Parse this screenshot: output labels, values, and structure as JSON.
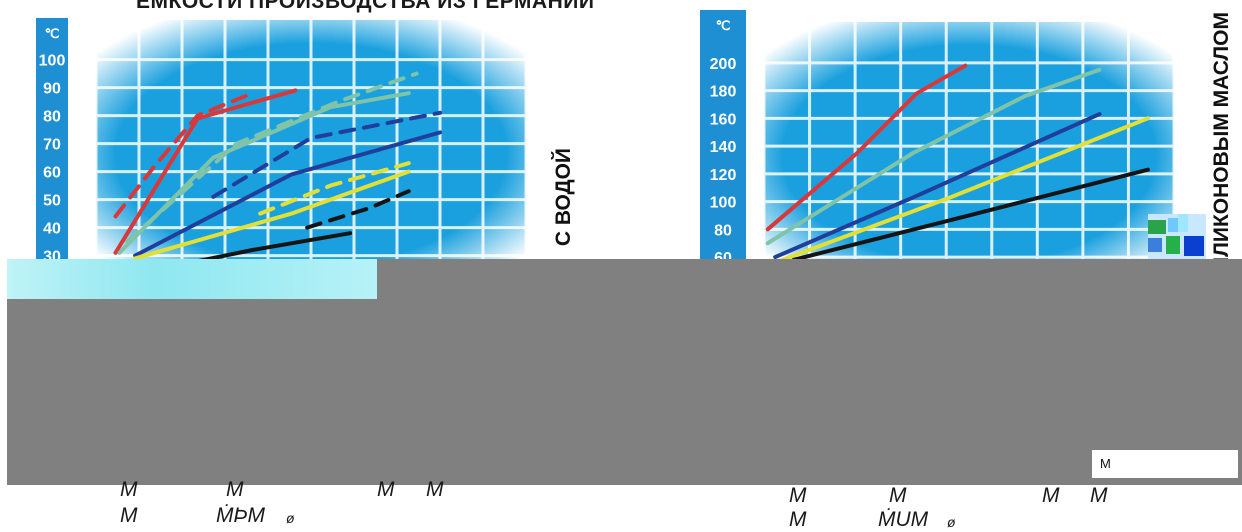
{
  "title": "ЕМКОСТИ ПРОИЗВОДСТВА ИЗ ГЕРМАНИИ",
  "box_text": "М",
  "charts_text": {
    "left_side_label": "С ВОДОЙ",
    "right_side_label": "С СИЛИКОНОВЫМ МАСЛОМ"
  },
  "footer": {
    "left": [
      {
        "text": "М",
        "size": "lg"
      },
      {
        "text": "М",
        "size": "lg"
      },
      {
        "text": "М",
        "size": "lg"
      },
      {
        "text": "М",
        "size": "lg"
      },
      {
        "text": "М",
        "size": "lg"
      },
      {
        "text": "ṀϷМ",
        "size": "lg"
      },
      {
        "text": "ø",
        "size": "sm"
      }
    ],
    "right": [
      {
        "text": "М",
        "size": "lg"
      },
      {
        "text": "М",
        "size": "lg"
      },
      {
        "text": "М",
        "size": "lg"
      },
      {
        "text": "М",
        "size": "lg"
      },
      {
        "text": "М",
        "size": "lg"
      },
      {
        "text": "ṀUМ",
        "size": "lg"
      },
      {
        "text": "ø",
        "size": "sm"
      }
    ]
  },
  "colors": {
    "axis_bar": "#1e8fd3",
    "grid_bg": "#1aa0de",
    "grid_line": "#d8f0fb",
    "red": "#d8383a",
    "teal": "#7fc4a8",
    "navy": "#1f3f9a",
    "yellow": "#e3e035",
    "black": "#141414"
  },
  "chart_data": [
    {
      "type": "line",
      "yunit": "℃",
      "ylim": [
        27,
        107
      ],
      "xlim": [
        0,
        11
      ],
      "yticks": [
        100,
        90,
        80,
        70,
        60,
        50,
        40,
        30
      ],
      "grid": true,
      "series": [
        {
          "color": "red",
          "dash": false,
          "points": [
            [
              0.5,
              31
            ],
            [
              2.6,
              79
            ],
            [
              5.1,
              89
            ]
          ]
        },
        {
          "color": "red",
          "dash": true,
          "points": [
            [
              0.5,
              44
            ],
            [
              1.5,
              62
            ],
            [
              2.6,
              80
            ],
            [
              4.0,
              88
            ]
          ]
        },
        {
          "color": "teal",
          "dash": false,
          "points": [
            [
              0.6,
              31
            ],
            [
              3.0,
              65
            ],
            [
              6.0,
              83
            ],
            [
              8.0,
              88
            ]
          ]
        },
        {
          "color": "teal",
          "dash": true,
          "points": [
            [
              0.8,
              35
            ],
            [
              3.6,
              70
            ],
            [
              6.2,
              85
            ],
            [
              8.2,
              95
            ]
          ]
        },
        {
          "color": "navy",
          "dash": false,
          "points": [
            [
              1.0,
              30
            ],
            [
              5.0,
              59
            ],
            [
              8.8,
              74
            ]
          ]
        },
        {
          "color": "navy",
          "dash": true,
          "points": [
            [
              3.0,
              51
            ],
            [
              5.5,
              72
            ],
            [
              8.8,
              81
            ]
          ]
        },
        {
          "color": "yellow",
          "dash": false,
          "points": [
            [
              1.0,
              29
            ],
            [
              5.0,
              45
            ],
            [
              8.0,
              60
            ]
          ]
        },
        {
          "color": "yellow",
          "dash": true,
          "points": [
            [
              4.2,
              45
            ],
            [
              6.0,
              55
            ],
            [
              8.0,
              63
            ]
          ]
        },
        {
          "color": "black",
          "dash": false,
          "points": [
            [
              2.6,
              28
            ],
            [
              4.0,
              32
            ],
            [
              6.5,
              38
            ]
          ]
        },
        {
          "color": "black",
          "dash": true,
          "points": [
            [
              5.4,
              40
            ],
            [
              7.0,
              47
            ],
            [
              8.0,
              53
            ]
          ]
        }
      ]
    },
    {
      "type": "line",
      "yunit": "℃",
      "ylim": [
        55,
        215
      ],
      "xlim": [
        0,
        11
      ],
      "yticks": [
        200,
        180,
        160,
        140,
        120,
        100,
        80,
        60
      ],
      "grid": true,
      "series": [
        {
          "color": "red",
          "dash": false,
          "points": [
            [
              0.1,
              80
            ],
            [
              2.5,
              135
            ],
            [
              4.1,
              178
            ],
            [
              5.4,
              198
            ]
          ]
        },
        {
          "color": "teal",
          "dash": false,
          "points": [
            [
              0.1,
              70
            ],
            [
              4.0,
              135
            ],
            [
              7.0,
              176
            ],
            [
              9.0,
              195
            ]
          ]
        },
        {
          "color": "navy",
          "dash": false,
          "points": [
            [
              0.3,
              60
            ],
            [
              4.0,
              103
            ],
            [
              9.0,
              163
            ]
          ]
        },
        {
          "color": "yellow",
          "dash": false,
          "points": [
            [
              0.5,
              58
            ],
            [
              5.0,
              103
            ],
            [
              10.3,
              160
            ]
          ]
        },
        {
          "color": "black",
          "dash": false,
          "points": [
            [
              0.8,
              58
            ],
            [
              5.5,
              90
            ],
            [
              10.3,
              123
            ]
          ]
        }
      ]
    }
  ]
}
